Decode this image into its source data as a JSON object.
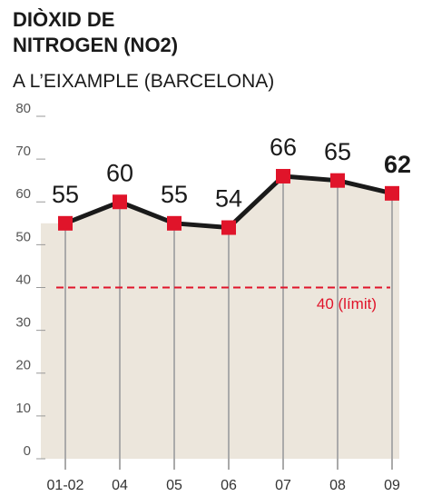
{
  "chart_data": {
    "type": "line",
    "title": "DIÒXID DE NITROGEN (NO2)",
    "subtitle": "A L’EIXAMPLE (BARCELONA)",
    "categories": [
      "01-02",
      "04",
      "05",
      "06",
      "07",
      "08",
      "09"
    ],
    "values": [
      55,
      60,
      55,
      54,
      66,
      65,
      62
    ],
    "color": "#1a1a1a",
    "marker_color": "#e0142a",
    "area_color": "#ece6dc",
    "ylim": [
      0,
      80
    ],
    "yticks": [
      0,
      10,
      20,
      30,
      40,
      50,
      60,
      70,
      80
    ],
    "reference": {
      "value": 40,
      "label": "40 (límit)",
      "color": "#e0142a"
    }
  }
}
